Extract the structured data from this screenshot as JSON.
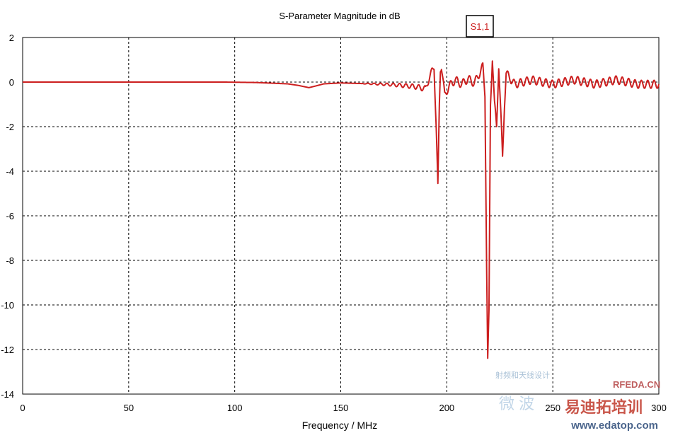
{
  "chart_data": {
    "type": "line",
    "title": "S-Parameter Magnitude in dB",
    "xlabel": "Frequency / MHz",
    "ylabel": "",
    "xlim": [
      0,
      300
    ],
    "ylim": [
      -14,
      2
    ],
    "x_ticks": [
      0,
      50,
      100,
      150,
      200,
      250,
      300
    ],
    "y_ticks": [
      2,
      0,
      -2,
      -4,
      -6,
      -8,
      -10,
      -12,
      -14
    ],
    "grid": true,
    "legend": "top-center",
    "series": [
      {
        "name": "S1,1",
        "color": "#cc1f1f",
        "points": [
          [
            0,
            0
          ],
          [
            95,
            0
          ],
          [
            110,
            -0.02
          ],
          [
            125,
            -0.08
          ],
          [
            130,
            -0.15
          ],
          [
            135,
            -0.25
          ],
          [
            138,
            -0.18
          ],
          [
            142,
            -0.08
          ],
          [
            150,
            -0.04
          ],
          [
            165,
            -0.08
          ],
          [
            175,
            -0.12
          ],
          [
            185,
            -0.2
          ],
          [
            190,
            -0.3
          ],
          [
            193,
            0.5
          ],
          [
            194,
            0.7
          ],
          [
            195,
            -2.0
          ],
          [
            195.8,
            -4.7
          ],
          [
            196.5,
            -1.0
          ],
          [
            197,
            0.6
          ],
          [
            197.5,
            0.7
          ],
          [
            199,
            -0.6
          ],
          [
            201,
            -0.2
          ],
          [
            204,
            0.1
          ],
          [
            207,
            -0.1
          ],
          [
            210,
            0.15
          ],
          [
            213,
            -0.05
          ],
          [
            216,
            0.5
          ],
          [
            217,
            0.7
          ],
          [
            218,
            -0.5
          ],
          [
            218.8,
            -8.3
          ],
          [
            219.3,
            -12.5
          ],
          [
            219.9,
            -10.4
          ],
          [
            220.6,
            -1.0
          ],
          [
            221.5,
            1.1
          ],
          [
            222.5,
            -1.0
          ],
          [
            223.5,
            -2.0
          ],
          [
            224.5,
            0.75
          ],
          [
            225.5,
            -1.5
          ],
          [
            226.3,
            -3.4
          ],
          [
            227.2,
            -1.0
          ],
          [
            228,
            0.4
          ],
          [
            232,
            -0.1
          ],
          [
            240,
            0.1
          ],
          [
            250,
            -0.1
          ],
          [
            260,
            0.1
          ],
          [
            270,
            -0.1
          ],
          [
            280,
            0.1
          ],
          [
            290,
            -0.1
          ],
          [
            300,
            -0.1
          ]
        ],
        "ripple_from_mhz": 160,
        "ripple_period_mhz": 3.0
      }
    ]
  },
  "watermark": {
    "site_cn": "易迪拓培训",
    "site_url": "www.edatop.com",
    "tag": "RFEDA.CN",
    "small_cn": "射频和天线设计",
    "mid_cn": "微 波"
  }
}
